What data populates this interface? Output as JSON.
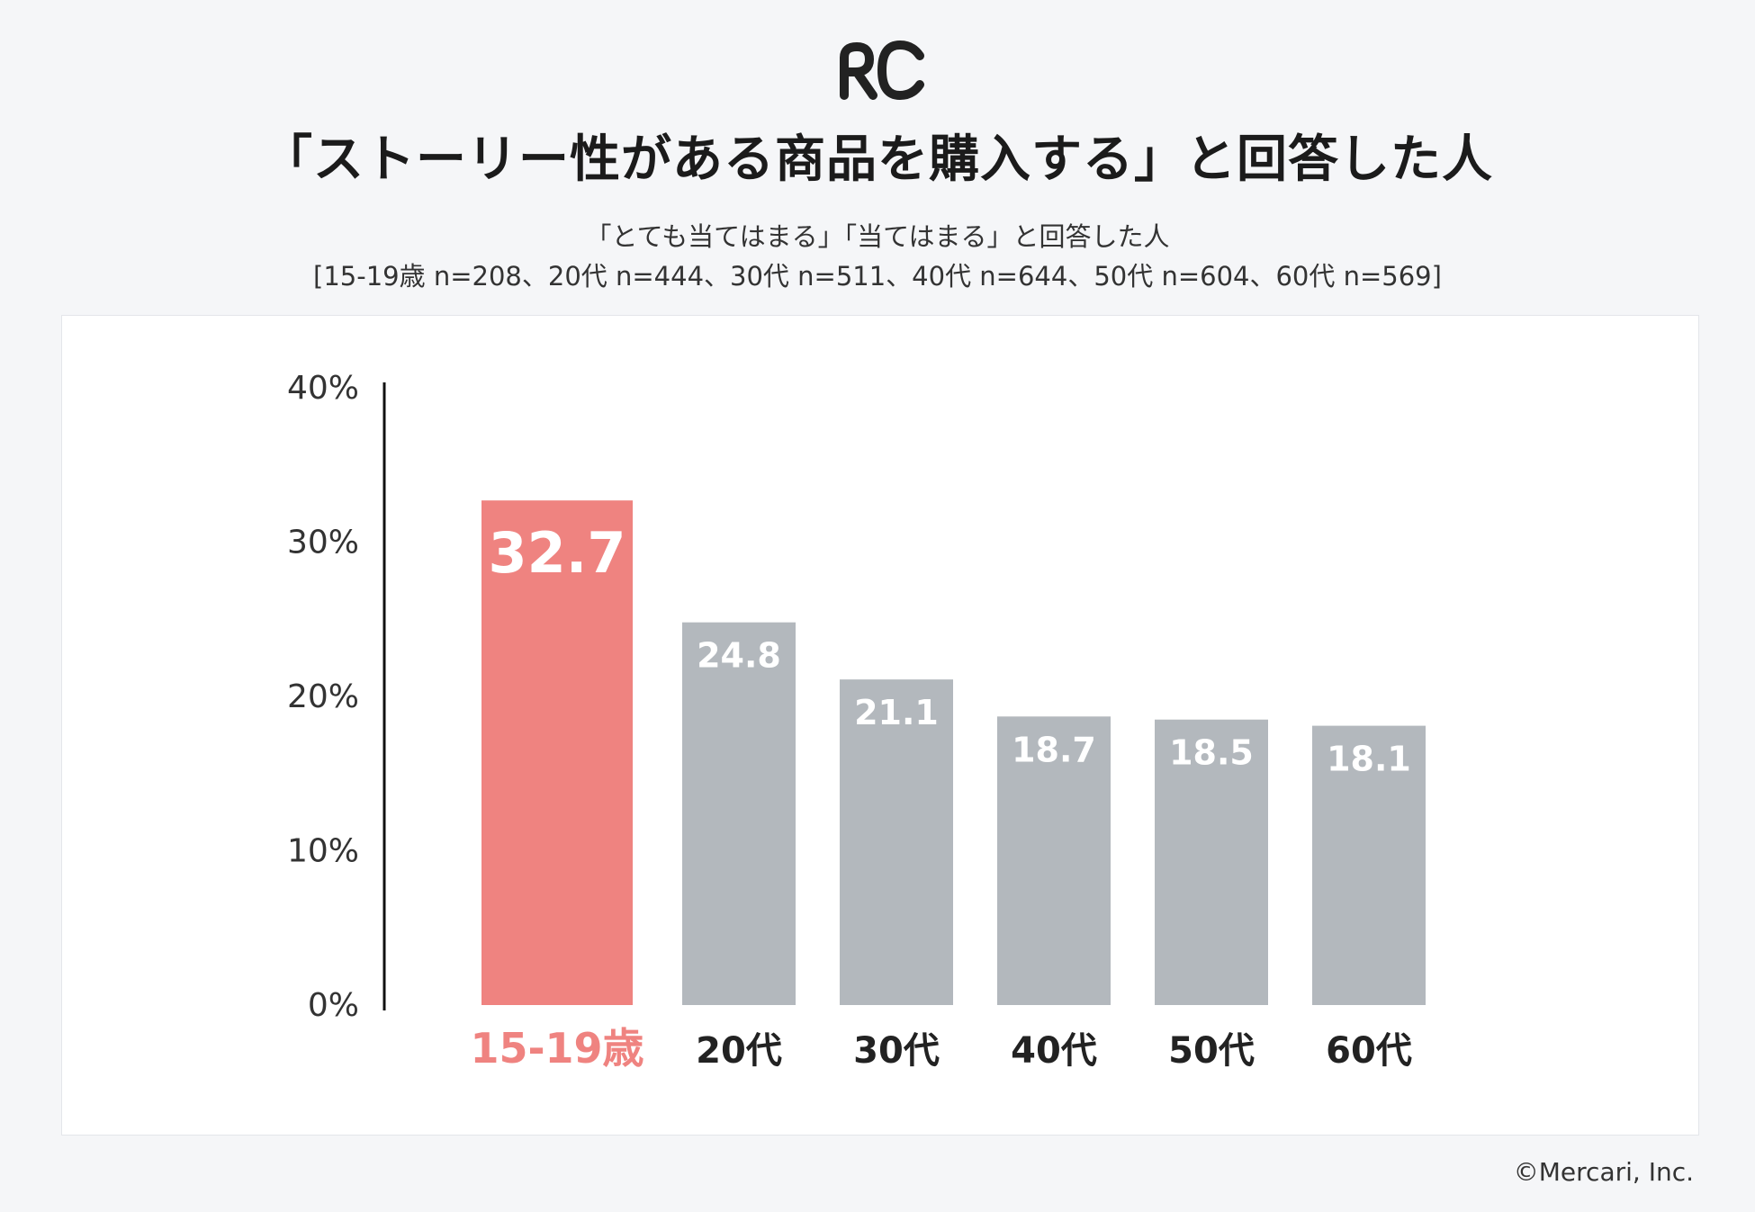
{
  "header": {
    "logo_text": "RC",
    "title": "「ストーリー性がある商品を購入する」と回答した人",
    "subtitle_line1": "「とても当てはまる」「当てはまる」と回答した人",
    "subtitle_line2": "[15-19歳 n=208、20代 n=444、30代 n=511、40代 n=644、50代 n=604、60代 n=569]"
  },
  "footer": {
    "copyright": "©Mercari, Inc."
  },
  "colors": {
    "highlight": "#ef8380",
    "bar": "#b3b8bd",
    "axis": "#111111",
    "label_dark": "#222222"
  },
  "chart_data": {
    "type": "bar",
    "title": "「ストーリー性がある商品を購入する」と回答した人",
    "xlabel": "",
    "ylabel": "",
    "ylim": [
      0,
      40
    ],
    "yticks": [
      0,
      10,
      20,
      30,
      40
    ],
    "ytick_labels": [
      "0%",
      "10%",
      "20%",
      "30%",
      "40%"
    ],
    "categories": [
      "15-19歳",
      "20代",
      "30代",
      "40代",
      "50代",
      "60代"
    ],
    "values": [
      32.7,
      24.8,
      21.1,
      18.7,
      18.5,
      18.1
    ],
    "value_labels": [
      "32.7",
      "24.8",
      "21.1",
      "18.7",
      "18.5",
      "18.1"
    ],
    "highlight_index": 0,
    "grid": false
  }
}
